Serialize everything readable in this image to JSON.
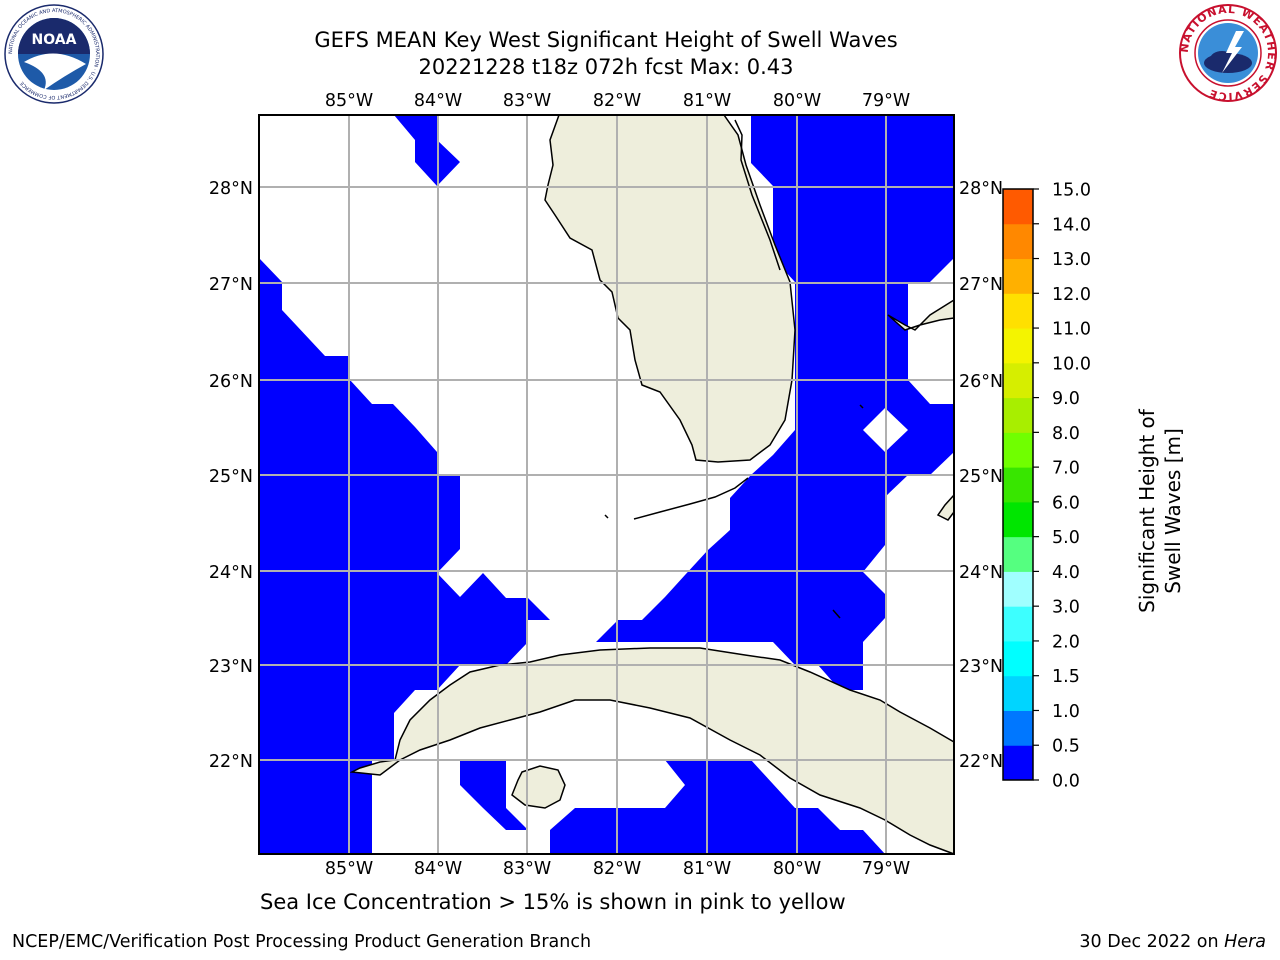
{
  "header": {
    "title_line_1": "GEFS MEAN Key West Significant Height of Swell Waves",
    "title_line_2": "20221228 t18z 072h fcst   Max: 0.43"
  },
  "logos": {
    "noaa_text": "NOAA",
    "noaa_ring_text": "NATIONAL OCEANIC AND ATMOSPHERIC ADMINISTRATION · U.S. DEPARTMENT OF COMMERCE",
    "nws_ring_text": "NATIONAL WEATHER SERVICE"
  },
  "map": {
    "region": "Key West",
    "lon_labels": [
      "85°W",
      "84°W",
      "83°W",
      "82°W",
      "81°W",
      "80°W",
      "79°W"
    ],
    "lat_labels": [
      "28°N",
      "27°N",
      "26°N",
      "25°N",
      "24°N",
      "23°N",
      "22°N"
    ],
    "lon_range": [
      -86.0,
      -78.25
    ],
    "lat_range": [
      21.0,
      28.8
    ],
    "ocean_fill_color": "#0000ff",
    "land_color": "#eeeedc",
    "grid_color": "#b0b0b0"
  },
  "colorbar": {
    "label": "Significant Height of Swell Waves [m]",
    "ticks": [
      "0.0",
      "0.5",
      "1.0",
      "1.5",
      "2.0",
      "3.0",
      "4.0",
      "5.0",
      "6.0",
      "7.0",
      "8.0",
      "9.0",
      "10.0",
      "11.0",
      "12.0",
      "13.0",
      "14.0",
      "15.0"
    ],
    "colors": [
      "#0000ff",
      "#0077ff",
      "#00d5ff",
      "#00ffff",
      "#3dffff",
      "#a0ffff",
      "#55ff80",
      "#00e600",
      "#38e600",
      "#70ff00",
      "#a8ee00",
      "#d6ee00",
      "#f4f400",
      "#ffe000",
      "#ffb000",
      "#ff8800",
      "#ff5a00",
      "#ff1e00",
      "#ff0000"
    ]
  },
  "footer": {
    "sea_ice_note": "Sea Ice Concentration > 15% is shown in pink to yellow",
    "branch": "NCEP/EMC/Verification Post Processing Product Generation Branch",
    "date": "30 Dec 2022 on",
    "host": "Hera"
  }
}
